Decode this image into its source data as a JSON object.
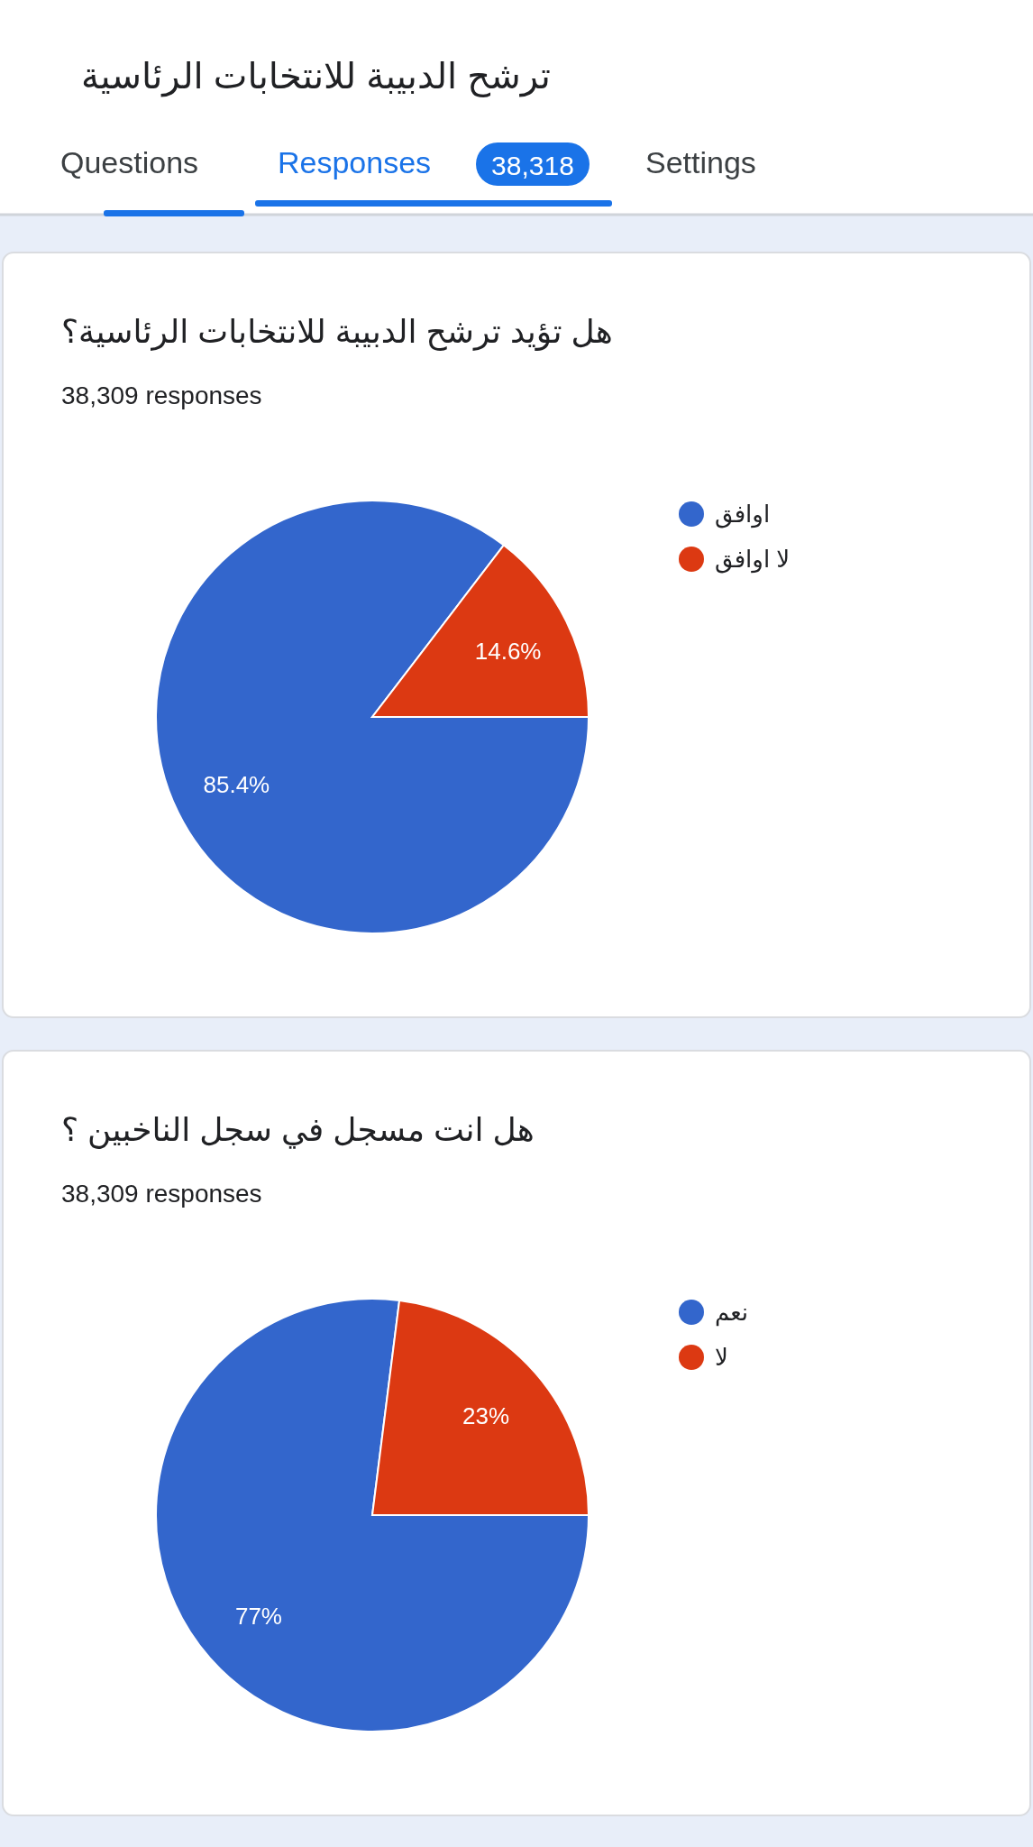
{
  "chart_data": [
    {
      "type": "other",
      "title": "ترشح الدبيبة للانتخابات الرئاسية",
      "annotations": [
        "Questions",
        "Responses",
        "38,318",
        "Settings"
      ]
    },
    {
      "type": "pie",
      "title": "هل تؤيد ترشح الدبيبة للانتخابات الرئاسية؟",
      "subtitle": "38,309 responses",
      "categories": [
        "اوافق",
        "لا اوافق"
      ],
      "values": [
        85.4,
        14.6
      ],
      "colors": [
        "#3366cc",
        "#dc3912"
      ],
      "value_labels": [
        "85.4%",
        "14.6%"
      ],
      "legend": "right"
    },
    {
      "type": "pie",
      "title": "هل انت مسجل في سجل الناخبين ؟",
      "subtitle": "38,309 responses",
      "categories": [
        "نعم",
        "لا"
      ],
      "values": [
        77,
        23
      ],
      "colors": [
        "#3366cc",
        "#dc3912"
      ],
      "value_labels": [
        "77%",
        "23%"
      ],
      "legend": "right"
    }
  ]
}
